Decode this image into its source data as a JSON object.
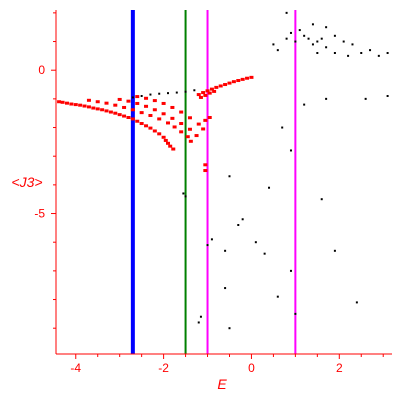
{
  "chart_data": {
    "type": "scatter",
    "title": "",
    "xlabel": "E",
    "ylabel": "<J3>",
    "xlim": [
      -4.45,
      3.2
    ],
    "ylim": [
      -9.9,
      2.1
    ],
    "grid": false,
    "legend": "none",
    "x_ticks": [
      -4,
      -2,
      0,
      2
    ],
    "x_tick_labels": [
      "-4",
      "-2",
      "0",
      "2"
    ],
    "y_ticks": [
      0,
      -5
    ],
    "y_tick_labels": [
      "0",
      "-5"
    ],
    "colors": {
      "axis": "#ff0000",
      "highlight_points": "#ff0000",
      "other_points": "#000000"
    },
    "vertical_lines": [
      {
        "x": -2.7,
        "color": "#0000ff"
      },
      {
        "x": -1.5,
        "color": "#008000"
      },
      {
        "x": -1.0,
        "color": "#ff00ff"
      },
      {
        "x": 1.0,
        "color": "#ff00ff"
      }
    ],
    "series": [
      {
        "color": "#ff0000",
        "points": [
          [
            -4.38,
            -1.1
          ],
          [
            -4.3,
            -1.12
          ],
          [
            -4.2,
            -1.15
          ],
          [
            -4.1,
            -1.18
          ],
          [
            -4.0,
            -1.2
          ],
          [
            -3.9,
            -1.22
          ],
          [
            -3.8,
            -1.25
          ],
          [
            -3.7,
            -1.28
          ],
          [
            -3.6,
            -1.32
          ],
          [
            -3.5,
            -1.35
          ],
          [
            -3.4,
            -1.38
          ],
          [
            -3.3,
            -1.42
          ],
          [
            -3.2,
            -1.46
          ],
          [
            -3.1,
            -1.5
          ],
          [
            -3.0,
            -1.55
          ],
          [
            -2.9,
            -1.6
          ],
          [
            -2.8,
            -1.65
          ],
          [
            -2.7,
            -1.7
          ],
          [
            -2.6,
            -1.78
          ],
          [
            -2.5,
            -1.86
          ],
          [
            -2.4,
            -1.94
          ],
          [
            -2.3,
            -2.02
          ],
          [
            -2.2,
            -2.12
          ],
          [
            -2.1,
            -2.22
          ],
          [
            -2.0,
            -2.34
          ],
          [
            -1.95,
            -2.45
          ],
          [
            -1.9,
            -2.55
          ],
          [
            -1.85,
            -2.65
          ],
          [
            -1.78,
            -2.75
          ],
          [
            -3.7,
            -1.05
          ],
          [
            -3.5,
            -1.1
          ],
          [
            -3.3,
            -1.15
          ],
          [
            -3.1,
            -1.22
          ],
          [
            -2.9,
            -1.3
          ],
          [
            -2.7,
            -1.38
          ],
          [
            -2.5,
            -1.48
          ],
          [
            -2.3,
            -1.58
          ],
          [
            -2.1,
            -1.7
          ],
          [
            -1.9,
            -1.84
          ],
          [
            -1.75,
            -1.98
          ],
          [
            -1.6,
            -2.15
          ],
          [
            -1.45,
            -2.32
          ],
          [
            -1.38,
            -2.48
          ],
          [
            -3.0,
            -1.02
          ],
          [
            -2.8,
            -1.08
          ],
          [
            -2.6,
            -1.16
          ],
          [
            -2.4,
            -1.26
          ],
          [
            -2.2,
            -1.38
          ],
          [
            -2.0,
            -1.52
          ],
          [
            -1.8,
            -1.68
          ],
          [
            -1.6,
            -1.86
          ],
          [
            -1.4,
            -2.06
          ],
          [
            -1.25,
            -2.28
          ],
          [
            -2.6,
            -0.92
          ],
          [
            -2.4,
            -0.98
          ],
          [
            -2.2,
            -1.06
          ],
          [
            -2.0,
            -1.16
          ],
          [
            -1.8,
            -1.3
          ],
          [
            -1.6,
            -1.46
          ],
          [
            -1.4,
            -1.66
          ],
          [
            -1.2,
            -1.88
          ],
          [
            -1.1,
            -2.05
          ],
          [
            -1.2,
            -0.85
          ],
          [
            -1.1,
            -0.78
          ],
          [
            -1.0,
            -0.72
          ],
          [
            -0.9,
            -0.66
          ],
          [
            -0.8,
            -0.6
          ],
          [
            -0.7,
            -0.55
          ],
          [
            -0.6,
            -0.5
          ],
          [
            -0.5,
            -0.45
          ],
          [
            -0.4,
            -0.4
          ],
          [
            -0.3,
            -0.36
          ],
          [
            -0.2,
            -0.32
          ],
          [
            -0.1,
            -0.28
          ],
          [
            0.0,
            -0.25
          ],
          [
            -1.15,
            -0.95
          ],
          [
            -1.05,
            -0.88
          ],
          [
            -0.95,
            -0.8
          ],
          [
            -0.85,
            -0.74
          ],
          [
            -1.05,
            -3.3
          ],
          [
            -1.05,
            -3.5
          ],
          [
            -0.95,
            -1.65
          ],
          [
            -1.05,
            -1.75
          ]
        ]
      },
      {
        "color": "#000000",
        "points": [
          [
            -2.7,
            -0.95
          ],
          [
            -2.5,
            -0.9
          ],
          [
            -2.3,
            -0.85
          ],
          [
            -2.1,
            -0.82
          ],
          [
            -1.9,
            -0.8
          ],
          [
            -1.7,
            -0.78
          ],
          [
            -1.5,
            -0.75
          ],
          [
            -1.3,
            -0.7
          ],
          [
            -1.55,
            -4.3
          ],
          [
            -1.5,
            -4.4
          ],
          [
            -1.0,
            -6.1
          ],
          [
            -1.15,
            -8.6
          ],
          [
            -1.2,
            -8.8
          ],
          [
            -0.9,
            -5.9
          ],
          [
            -0.6,
            -6.3
          ],
          [
            -0.5,
            -9.0
          ],
          [
            -0.3,
            -5.4
          ],
          [
            -0.6,
            -7.6
          ],
          [
            -0.5,
            -3.7
          ],
          [
            -0.2,
            -5.2
          ],
          [
            0.1,
            -6.0
          ],
          [
            0.3,
            -6.4
          ],
          [
            0.6,
            -7.9
          ],
          [
            0.4,
            -4.1
          ],
          [
            0.9,
            -7.0
          ],
          [
            1.0,
            -8.5
          ],
          [
            1.6,
            -4.5
          ],
          [
            1.9,
            -6.3
          ],
          [
            2.4,
            -8.1
          ],
          [
            1.2,
            -1.2
          ],
          [
            1.7,
            -1.0
          ],
          [
            2.6,
            -1.0
          ],
          [
            3.1,
            -0.9
          ],
          [
            0.7,
            -2.0
          ],
          [
            0.9,
            -2.8
          ],
          [
            0.5,
            0.9
          ],
          [
            0.6,
            0.7
          ],
          [
            0.8,
            1.1
          ],
          [
            0.9,
            1.3
          ],
          [
            1.0,
            1.0
          ],
          [
            1.1,
            1.4
          ],
          [
            1.2,
            1.2
          ],
          [
            1.3,
            1.1
          ],
          [
            1.4,
            0.9
          ],
          [
            1.5,
            1.0
          ],
          [
            1.6,
            1.1
          ],
          [
            1.7,
            0.8
          ],
          [
            1.9,
            1.2
          ],
          [
            2.1,
            1.0
          ],
          [
            2.3,
            0.9
          ],
          [
            2.5,
            0.6
          ],
          [
            2.7,
            0.7
          ],
          [
            2.9,
            0.5
          ],
          [
            3.1,
            0.6
          ],
          [
            0.8,
            2.0
          ],
          [
            1.4,
            1.6
          ],
          [
            1.7,
            1.5
          ],
          [
            1.5,
            0.6
          ],
          [
            1.9,
            0.6
          ],
          [
            2.2,
            0.5
          ]
        ]
      }
    ]
  }
}
